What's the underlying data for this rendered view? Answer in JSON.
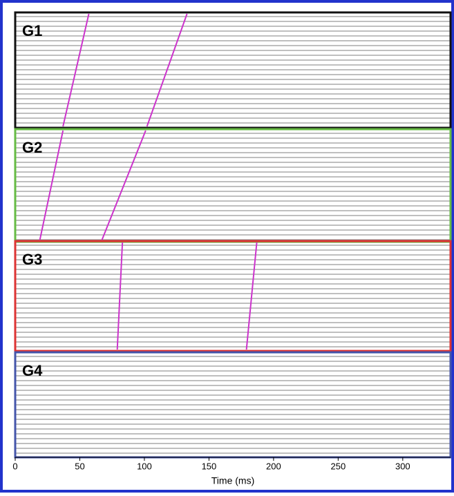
{
  "chart_data": {
    "type": "seismic",
    "xlabel": "Time (ms)",
    "xlim": [
      0,
      337
    ],
    "xticks": [
      0,
      50,
      100,
      150,
      200,
      250,
      300
    ],
    "pick_color": "#cc33cc",
    "groups": [
      {
        "name": "G1",
        "color": "#111111",
        "picks": [
          [
            57,
            37
          ],
          [
            133,
            102
          ]
        ]
      },
      {
        "name": "G2",
        "color": "#66bb44",
        "picks": [
          [
            37,
            19
          ],
          [
            101,
            67
          ]
        ]
      },
      {
        "name": "G3",
        "color": "#dd3333",
        "picks": [
          [
            83,
            79
          ],
          [
            187,
            179
          ]
        ]
      },
      {
        "name": "G4",
        "color": "#4455aa",
        "picks": []
      }
    ]
  }
}
